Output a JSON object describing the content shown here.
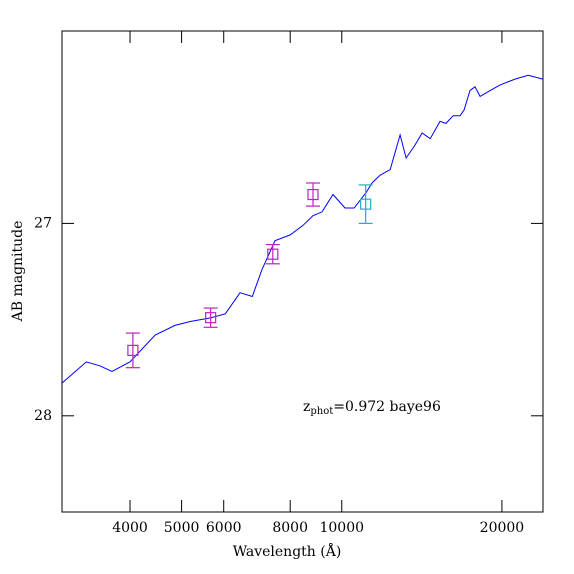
{
  "chart_data": {
    "type": "line",
    "xlabel": "Wavelength (Å)",
    "ylabel": "AB magnitude",
    "log_x": true,
    "xlim": [
      2980,
      23890
    ],
    "ylim": [
      28.5,
      26.0
    ],
    "xticks": [
      4000,
      5000,
      6000,
      8000,
      10000,
      20000
    ],
    "yticks": [
      27,
      28
    ],
    "annotation": {
      "main": "z",
      "sub": "phot",
      "rest": "=0.972 baye96",
      "color": "#0000ff"
    },
    "line": {
      "color": "#0000ff",
      "x": [
        2980,
        3310,
        3510,
        3700,
        4000,
        4460,
        4860,
        5190,
        5680,
        6040,
        6440,
        6790,
        7080,
        7490,
        8000,
        8460,
        8830,
        9180,
        9630,
        10140,
        10550,
        11110,
        11400,
        11800,
        12330,
        12870,
        13210,
        13680,
        14160,
        14660,
        15300,
        15700,
        16190,
        16690,
        16980,
        17420,
        17800,
        18200,
        19000,
        19840,
        21170,
        22400,
        23890
      ],
      "y": [
        27.83,
        27.72,
        27.74,
        27.77,
        27.72,
        27.58,
        27.53,
        27.51,
        27.49,
        27.47,
        27.36,
        27.38,
        27.24,
        27.09,
        27.06,
        27.01,
        26.96,
        26.94,
        26.85,
        26.92,
        26.92,
        26.84,
        26.79,
        26.75,
        26.72,
        26.54,
        26.66,
        26.6,
        26.53,
        26.56,
        26.47,
        26.48,
        26.44,
        26.44,
        26.41,
        26.31,
        26.29,
        26.34,
        26.31,
        26.28,
        26.25,
        26.23,
        26.25
      ]
    },
    "points": [
      {
        "x": 4050,
        "y": 27.66,
        "err": 0.09,
        "color": "#c020c0"
      },
      {
        "x": 5670,
        "y": 27.49,
        "err": 0.05,
        "color": "#c020c0"
      },
      {
        "x": 7420,
        "y": 27.16,
        "err": 0.05,
        "color": "#c020c0"
      },
      {
        "x": 8830,
        "y": 26.85,
        "err": 0.06,
        "color": "#c020c0"
      },
      {
        "x": 11090,
        "y": 26.9,
        "err": 0.1,
        "color": "#20b0c0"
      }
    ]
  }
}
